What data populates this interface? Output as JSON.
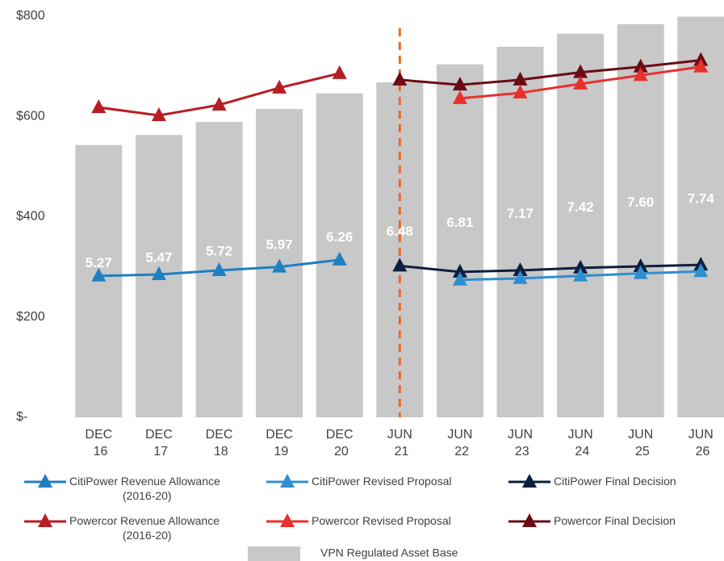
{
  "chart_data": {
    "type": "bar_line",
    "categories": [
      "DEC 16",
      "DEC 17",
      "DEC 18",
      "DEC 19",
      "DEC 20",
      "JUN 21",
      "JUN 22",
      "JUN 23",
      "JUN 24",
      "JUN 25",
      "JUN 26"
    ],
    "bars": {
      "name": "VPN Regulated Asset Base",
      "color": "#c8c8c8",
      "values": [
        543,
        563,
        589,
        615,
        646,
        668,
        704,
        739,
        765,
        784,
        799
      ],
      "labels": [
        "5.27",
        "5.47",
        "5.72",
        "5.97",
        "6.26",
        "6.48",
        "6.81",
        "7.17",
        "7.42",
        "7.60",
        "7.74"
      ]
    },
    "series": [
      {
        "name": "CitiPower Revenue Allowance (2016-20)",
        "color": "#1f7fc1",
        "values": [
          282,
          285,
          293,
          300,
          314,
          null,
          null,
          null,
          null,
          null,
          null
        ]
      },
      {
        "name": "CitiPower Revised Proposal",
        "color": "#2e8fd0",
        "values": [
          null,
          null,
          null,
          null,
          null,
          null,
          274,
          277,
          282,
          287,
          291
        ]
      },
      {
        "name": "CitiPower Final Decision",
        "color": "#0d1f3f",
        "values": [
          null,
          null,
          null,
          null,
          null,
          302,
          290,
          293,
          298,
          301,
          304
        ]
      },
      {
        "name": "Powercor Revenue Allowance (2016-20)",
        "color": "#b81d24",
        "values": [
          618,
          602,
          623,
          657,
          686,
          null,
          null,
          null,
          null,
          null,
          null
        ]
      },
      {
        "name": "Powercor Revised Proposal",
        "color": "#e8302e",
        "values": [
          null,
          null,
          null,
          null,
          null,
          null,
          636,
          647,
          665,
          682,
          699
        ]
      },
      {
        "name": "Powercor Final Decision",
        "color": "#6b0c14",
        "values": [
          null,
          null,
          null,
          null,
          null,
          673,
          663,
          673,
          688,
          699,
          712
        ]
      }
    ],
    "ylim": [
      0,
      800
    ],
    "yticks": [
      {
        "value": 0,
        "label": "$-"
      },
      {
        "value": 200,
        "label": "$200"
      },
      {
        "value": 400,
        "label": "$400"
      },
      {
        "value": 600,
        "label": "$600"
      },
      {
        "value": 800,
        "label": "$800"
      }
    ],
    "divider_category": 5,
    "divider_color": "#e8692a"
  }
}
